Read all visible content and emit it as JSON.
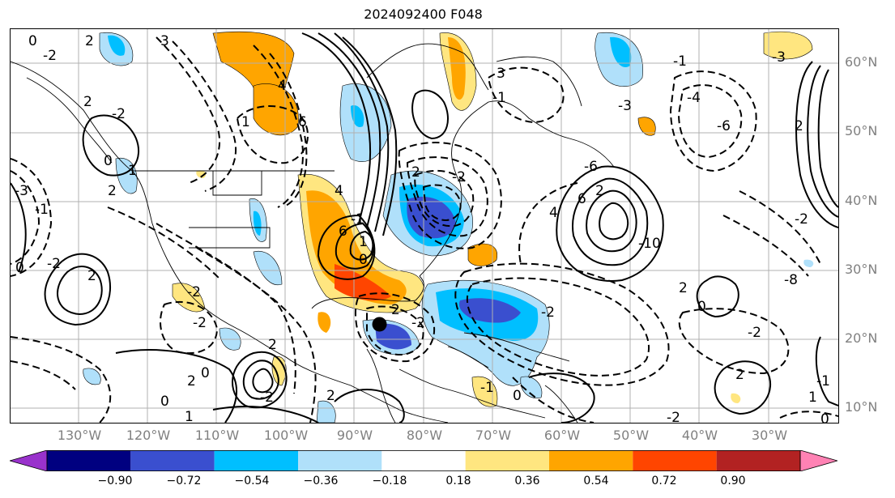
{
  "title": "2024092400 F048",
  "lat_labels": [
    "60°N",
    "50°N",
    "40°N",
    "30°N",
    "20°N",
    "10°N"
  ],
  "lon_labels": [
    "130°W",
    "120°W",
    "110°W",
    "100°W",
    "90°W",
    "80°W",
    "70°W",
    "60°W",
    "50°W",
    "40°W",
    "30°W"
  ],
  "colorbar": {
    "colors": [
      "#9932cc",
      "#000080",
      "#3a4fcf",
      "#00bfff",
      "#b0e0fa",
      "#ffffff",
      "#ffe680",
      "#ffa500",
      "#ff4500",
      "#b22222",
      "#ff82b4"
    ],
    "ticks": [
      "−0.90",
      "−0.72",
      "−0.54",
      "−0.36",
      "−0.18",
      "0.18",
      "0.36",
      "0.54",
      "0.72",
      "0.90"
    ]
  },
  "contour_labels": [
    "0",
    "2",
    "3",
    "-2",
    "4",
    "6",
    "2",
    "-2",
    "3",
    "-1",
    "1",
    "-3",
    "0",
    "1",
    "-1",
    "2",
    "0",
    "-2",
    "2",
    "-2",
    "0",
    "2",
    "-2",
    "2",
    "-2",
    "4",
    "6",
    "-1",
    "0",
    "1",
    "2",
    "-2",
    "0",
    "2",
    "-2",
    "2",
    "1",
    "0",
    "-1",
    "-2",
    "-6",
    "-1",
    "6",
    "2",
    "-10",
    "4",
    "2",
    "-4",
    "-6",
    "-2",
    "0",
    "2",
    "-2",
    "-8",
    "-3",
    "2",
    "0",
    "1",
    "-1",
    "-2",
    "-3"
  ],
  "storm_marker": {
    "lon": -86.3,
    "lat": 22.2
  }
}
